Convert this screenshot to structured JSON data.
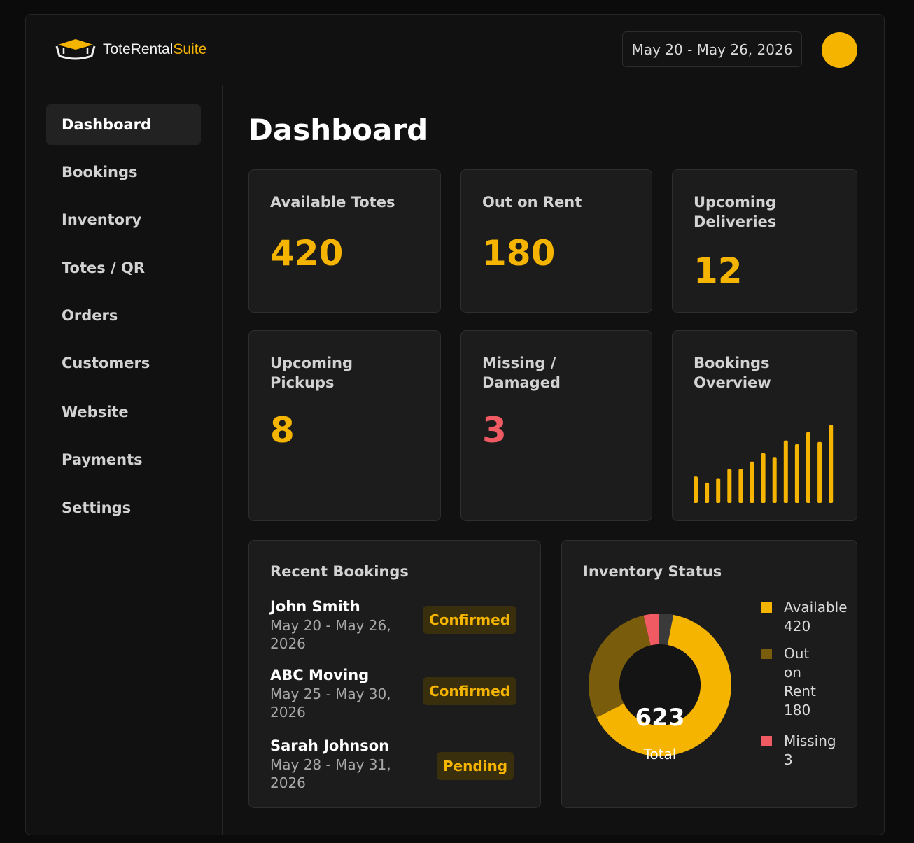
{
  "header": {
    "brand_main": "ToteRental",
    "brand_accent": "Suite",
    "date_range": "May 20 - May 26, 2026"
  },
  "sidebar": {
    "items": [
      {
        "label": "Dashboard",
        "active": true
      },
      {
        "label": "Bookings"
      },
      {
        "label": "Inventory"
      },
      {
        "label": "Totes / QR"
      },
      {
        "label": "Orders"
      },
      {
        "label": "Customers"
      },
      {
        "label": "Website"
      },
      {
        "label": "Payments"
      },
      {
        "label": "Settings"
      }
    ]
  },
  "page_title": "Dashboard",
  "stats": {
    "available": {
      "label": "Available Totes",
      "value": "420"
    },
    "out_on_rent": {
      "label": "Out on Rent",
      "value": "180"
    },
    "deliveries": {
      "label_line1": "Upcoming",
      "label_line2": "Deliveries",
      "value": "12"
    },
    "pickups": {
      "label_line1": "Upcoming",
      "label_line2": "Pickups",
      "value": "8"
    },
    "missing": {
      "label_line1": "Missing /",
      "label_line2": "Damaged",
      "value": "3"
    },
    "bookings_overview": {
      "label_line1": "Bookings",
      "label_line2": "Overview"
    }
  },
  "chart_data": {
    "type": "bar",
    "values": [
      35,
      27,
      33,
      45,
      45,
      55,
      66,
      61,
      83,
      78,
      94,
      81,
      104
    ],
    "color": "#f5b400"
  },
  "recent_bookings": {
    "title": "Recent Bookings",
    "items": [
      {
        "name": "John Smith",
        "dates_line1": "May 20 - May 26,",
        "dates_line2": "2026",
        "status": "Confirmed"
      },
      {
        "name": "ABC Moving",
        "dates_line1": "May 25 - May 30,",
        "dates_line2": "2026",
        "status": "Confirmed"
      },
      {
        "name": "Sarah Johnson",
        "dates_line1": "May 28 - May 31,",
        "dates_line2": "2026",
        "status": "Pending"
      }
    ]
  },
  "inventory_status": {
    "title": "Inventory Status",
    "total": "623",
    "total_label": "Total",
    "segments": [
      {
        "key": "available",
        "value": 420,
        "color": "#f5b400"
      },
      {
        "key": "out_on_rent",
        "value": 180,
        "color": "#7a5d0c"
      },
      {
        "key": "missing",
        "value": 3,
        "color": "#f05a63"
      },
      {
        "key": "other",
        "value": 20,
        "color": "#3a3a3a"
      }
    ],
    "legend": [
      {
        "lines": [
          "Available",
          "420"
        ],
        "color": "#f5b400"
      },
      {
        "lines": [
          "Out",
          "on",
          "Rent",
          "180"
        ],
        "color": "#7a5d0c"
      },
      {
        "lines": [
          "Missing",
          "3"
        ],
        "color": "#f05a63"
      }
    ]
  }
}
